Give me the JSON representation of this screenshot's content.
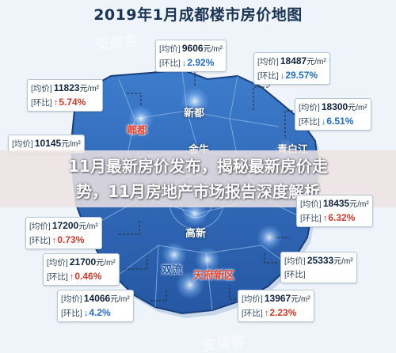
{
  "title": "2019年1月成都楼市房价地图",
  "banner": {
    "line1": "11月最新房价发布，揭秘最新房价走",
    "line2": "势，11月房地产市场报告深度解析"
  },
  "watermark": "安居客",
  "labels": {
    "price": "[均价]",
    "change": "[环比]",
    "unit": "元/m²"
  },
  "districts": {
    "xindu": "新都",
    "pixian": "郫都",
    "jinniu": "金牛",
    "qingbaijiang": "青白江",
    "gaoxin": "高新",
    "shuangliu": "双流",
    "tianfu": "天府新区"
  },
  "cards": [
    {
      "price": "9606",
      "change": "2.92%",
      "direction": "down"
    },
    {
      "price": "18487",
      "change": "29.57%",
      "direction": "down"
    },
    {
      "price": "11823",
      "change": "5.74%",
      "direction": "up"
    },
    {
      "price": "18300",
      "change": "6.51%",
      "direction": "down"
    },
    {
      "price": "10145",
      "change": "",
      "direction": ""
    },
    {
      "price": "17200",
      "change": "0.73%",
      "direction": "up"
    },
    {
      "price": "21700",
      "change": "0.46%",
      "direction": "up"
    },
    {
      "price": "14066",
      "change": "4.2%",
      "direction": "down"
    },
    {
      "price": "18435",
      "change": "6.32%",
      "direction": "up"
    },
    {
      "price": "25333",
      "change": "",
      "direction": ""
    },
    {
      "price": "13967",
      "change": "2.23%",
      "direction": "up"
    }
  ],
  "colors": {
    "map_fill": "#2d67b8",
    "map_edge": "#1a4a8c",
    "banner_bg": "#ece2e2",
    "up": "#d23a2a",
    "down": "#1f6cc4"
  }
}
